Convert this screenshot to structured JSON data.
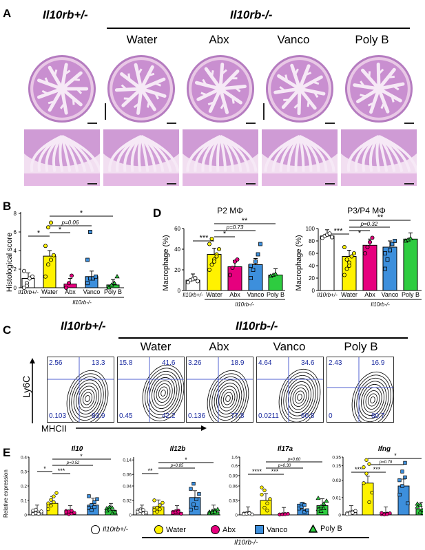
{
  "panelA": {
    "letter": "A",
    "het": "Il10rb+/-",
    "ko": "Il10rb-/-",
    "groups": [
      "Water",
      "Abx",
      "Vanco",
      "Poly B"
    ]
  },
  "panelB": {
    "letter": "B",
    "ylabel": "Histological score",
    "xcats": [
      "Il10rb+/-",
      "Water",
      "Abx",
      "Vanco",
      "Poly B"
    ],
    "ko_label": "Il10rb-/-",
    "sig": [
      "*",
      "*",
      "p=0.06",
      "*"
    ]
  },
  "panelD": {
    "letter": "D",
    "p2_title": "P2 MΦ",
    "p34_title": "P3/P4 MΦ",
    "ylabel": "Macrophage (%)",
    "xcats": [
      "Il10rb+/-",
      "Water",
      "Abx",
      "Vanco",
      "Poly B"
    ],
    "ko_label": "Il10rb-/-",
    "p2_sig": [
      "***",
      "*",
      "p=0.73",
      "**"
    ],
    "p34_sig": [
      "***",
      "*",
      "p=0.32",
      "**"
    ]
  },
  "panelC": {
    "letter": "C",
    "het": "Il10rb+/-",
    "ko": "Il10rb-/-",
    "groups": [
      "Water",
      "Abx",
      "Vanco",
      "Poly B"
    ],
    "ylabel": "Ly6C",
    "xlabel": "MHCII",
    "plots": [
      {
        "ul": "2.56",
        "ur": "13.3",
        "ll": "0.103",
        "lr": "83.9"
      },
      {
        "ul": "15.8",
        "ur": "41.6",
        "ll": "0.45",
        "lr": "42.2"
      },
      {
        "ul": "3.26",
        "ur": "18.9",
        "ll": "0.136",
        "lr": "77.8"
      },
      {
        "ul": "4.64",
        "ur": "34.6",
        "ll": "0.0211",
        "lr": "60.8"
      },
      {
        "ul": "2.43",
        "ur": "16.9",
        "ll": "0",
        "lr": "80.7"
      }
    ]
  },
  "panelE": {
    "letter": "E",
    "ylabel": "Relative expression",
    "genes": [
      {
        "name": "Il10",
        "sig": [
          "*",
          "p=0.52",
          "***",
          "*"
        ]
      },
      {
        "name": "Il12b",
        "sig": [
          "**",
          "p=0.85",
          "*"
        ]
      },
      {
        "name": "Il17a",
        "sig": [
          "****",
          "***",
          "p=0.30",
          "p=0.60"
        ]
      },
      {
        "name": "Ifng",
        "sig": [
          "****",
          "***",
          "p=0.79",
          "*"
        ]
      }
    ],
    "legend": [
      "Il10rb+/-",
      "Water",
      "Abx",
      "Vanco",
      "Poly B"
    ],
    "ko_label": "Il10rb-/-"
  },
  "colors": {
    "het": "#ffffff",
    "water": "#fff200",
    "abx": "#e6007e",
    "vanco": "#3d8fdc",
    "polyb": "#2ecc40",
    "quad": "#1a2aa0"
  }
}
